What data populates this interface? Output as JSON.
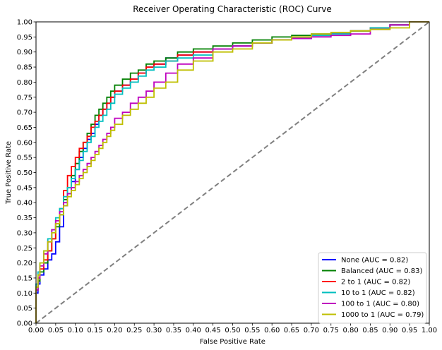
{
  "chart_data": {
    "type": "line",
    "title": "Receiver Operating Characteristic (ROC) Curve",
    "xlabel": "False Positive Rate",
    "ylabel": "True Positive Rate",
    "xlim": [
      0,
      1
    ],
    "ylim": [
      0,
      1
    ],
    "grid": false,
    "legend_position": "lower-right",
    "x_ticks": [
      "0.00",
      "0.05",
      "0.10",
      "0.15",
      "0.20",
      "0.25",
      "0.30",
      "0.35",
      "0.40",
      "0.45",
      "0.50",
      "0.55",
      "0.60",
      "0.65",
      "0.70",
      "0.75",
      "0.80",
      "0.85",
      "0.90",
      "0.95",
      "1.00"
    ],
    "y_ticks": [
      "0.00",
      "0.05",
      "0.10",
      "0.15",
      "0.20",
      "0.25",
      "0.30",
      "0.35",
      "0.40",
      "0.45",
      "0.50",
      "0.55",
      "0.60",
      "0.65",
      "0.70",
      "0.75",
      "0.80",
      "0.85",
      "0.90",
      "0.95",
      "1.00"
    ],
    "diagonal": {
      "x": [
        0,
        1
      ],
      "y": [
        0,
        1
      ],
      "color": "#808080",
      "style": "dashed"
    },
    "series": [
      {
        "name": "None (AUC = 0.82)",
        "color": "#0000ff",
        "x": [
          0,
          0.005,
          0.01,
          0.02,
          0.03,
          0.04,
          0.05,
          0.06,
          0.07,
          0.08,
          0.09,
          0.1,
          0.11,
          0.12,
          0.13,
          0.14,
          0.15,
          0.16,
          0.17,
          0.18,
          0.19,
          0.2,
          0.22,
          0.24,
          0.26,
          0.28,
          0.3,
          0.33,
          0.36,
          0.4,
          0.45,
          0.5,
          0.55,
          0.6,
          0.65,
          0.7,
          0.75,
          0.8,
          0.85,
          0.9,
          0.95,
          1.0
        ],
        "y": [
          0,
          0.1,
          0.13,
          0.16,
          0.18,
          0.21,
          0.23,
          0.27,
          0.32,
          0.39,
          0.43,
          0.47,
          0.51,
          0.55,
          0.58,
          0.61,
          0.63,
          0.66,
          0.69,
          0.71,
          0.73,
          0.75,
          0.77,
          0.79,
          0.81,
          0.83,
          0.85,
          0.86,
          0.88,
          0.89,
          0.9,
          0.91,
          0.92,
          0.93,
          0.94,
          0.945,
          0.955,
          0.96,
          0.97,
          0.98,
          0.99,
          1.0
        ]
      },
      {
        "name": "Balanced (AUC = 0.83)",
        "color": "#008000",
        "x": [
          0,
          0.005,
          0.01,
          0.02,
          0.03,
          0.04,
          0.05,
          0.06,
          0.07,
          0.08,
          0.09,
          0.1,
          0.11,
          0.12,
          0.13,
          0.14,
          0.15,
          0.16,
          0.17,
          0.18,
          0.19,
          0.2,
          0.22,
          0.24,
          0.26,
          0.28,
          0.3,
          0.33,
          0.36,
          0.4,
          0.45,
          0.5,
          0.55,
          0.6,
          0.65,
          0.7,
          0.75,
          0.8,
          0.85,
          0.9,
          0.95,
          1.0
        ],
        "y": [
          0,
          0.11,
          0.14,
          0.17,
          0.2,
          0.24,
          0.28,
          0.32,
          0.36,
          0.41,
          0.45,
          0.49,
          0.53,
          0.57,
          0.6,
          0.63,
          0.66,
          0.69,
          0.71,
          0.73,
          0.75,
          0.77,
          0.79,
          0.81,
          0.83,
          0.84,
          0.86,
          0.87,
          0.88,
          0.9,
          0.91,
          0.92,
          0.93,
          0.94,
          0.95,
          0.955,
          0.96,
          0.965,
          0.97,
          0.98,
          0.99,
          1.0
        ]
      },
      {
        "name": "2 to 1 (AUC = 0.82)",
        "color": "#ff0000",
        "x": [
          0,
          0.005,
          0.01,
          0.02,
          0.03,
          0.04,
          0.05,
          0.06,
          0.07,
          0.08,
          0.09,
          0.1,
          0.11,
          0.12,
          0.13,
          0.14,
          0.15,
          0.16,
          0.17,
          0.18,
          0.19,
          0.2,
          0.22,
          0.24,
          0.26,
          0.28,
          0.3,
          0.33,
          0.36,
          0.4,
          0.45,
          0.5,
          0.55,
          0.6,
          0.65,
          0.7,
          0.75,
          0.8,
          0.85,
          0.9,
          0.95,
          1.0
        ],
        "y": [
          0,
          0.12,
          0.15,
          0.18,
          0.21,
          0.24,
          0.28,
          0.33,
          0.38,
          0.44,
          0.49,
          0.52,
          0.55,
          0.58,
          0.6,
          0.62,
          0.65,
          0.67,
          0.69,
          0.71,
          0.73,
          0.75,
          0.77,
          0.79,
          0.81,
          0.83,
          0.85,
          0.86,
          0.87,
          0.89,
          0.9,
          0.91,
          0.92,
          0.93,
          0.94,
          0.95,
          0.955,
          0.96,
          0.97,
          0.98,
          0.99,
          1.0
        ]
      },
      {
        "name": "10 to 1 (AUC = 0.82)",
        "color": "#00bfbf",
        "x": [
          0,
          0.005,
          0.01,
          0.02,
          0.03,
          0.04,
          0.05,
          0.06,
          0.07,
          0.08,
          0.09,
          0.1,
          0.11,
          0.12,
          0.13,
          0.14,
          0.15,
          0.16,
          0.17,
          0.18,
          0.19,
          0.2,
          0.22,
          0.24,
          0.26,
          0.28,
          0.3,
          0.33,
          0.36,
          0.4,
          0.45,
          0.5,
          0.55,
          0.6,
          0.65,
          0.7,
          0.75,
          0.8,
          0.85,
          0.9,
          0.95,
          1.0
        ],
        "y": [
          0,
          0.13,
          0.17,
          0.2,
          0.24,
          0.28,
          0.31,
          0.35,
          0.38,
          0.42,
          0.45,
          0.48,
          0.51,
          0.54,
          0.57,
          0.6,
          0.62,
          0.65,
          0.67,
          0.69,
          0.71,
          0.73,
          0.76,
          0.78,
          0.8,
          0.82,
          0.84,
          0.85,
          0.87,
          0.88,
          0.89,
          0.91,
          0.92,
          0.93,
          0.94,
          0.95,
          0.955,
          0.96,
          0.97,
          0.98,
          0.99,
          1.0
        ]
      },
      {
        "name": "100 to 1 (AUC = 0.80)",
        "color": "#bf00bf",
        "x": [
          0,
          0.005,
          0.01,
          0.02,
          0.03,
          0.04,
          0.05,
          0.06,
          0.07,
          0.08,
          0.09,
          0.1,
          0.11,
          0.12,
          0.13,
          0.14,
          0.15,
          0.16,
          0.17,
          0.18,
          0.19,
          0.2,
          0.22,
          0.24,
          0.26,
          0.28,
          0.3,
          0.33,
          0.36,
          0.4,
          0.45,
          0.5,
          0.55,
          0.6,
          0.65,
          0.7,
          0.75,
          0.8,
          0.85,
          0.9,
          0.95,
          1.0
        ],
        "y": [
          0,
          0.11,
          0.15,
          0.19,
          0.23,
          0.27,
          0.31,
          0.34,
          0.37,
          0.4,
          0.43,
          0.45,
          0.47,
          0.49,
          0.51,
          0.53,
          0.55,
          0.57,
          0.59,
          0.61,
          0.63,
          0.65,
          0.68,
          0.7,
          0.73,
          0.75,
          0.77,
          0.8,
          0.83,
          0.86,
          0.88,
          0.91,
          0.92,
          0.93,
          0.94,
          0.945,
          0.95,
          0.955,
          0.96,
          0.975,
          0.99,
          1.0
        ]
      },
      {
        "name": "1000 to 1 (AUC = 0.79)",
        "color": "#bfbf00",
        "x": [
          0,
          0.005,
          0.01,
          0.02,
          0.03,
          0.04,
          0.05,
          0.06,
          0.07,
          0.08,
          0.09,
          0.1,
          0.11,
          0.12,
          0.13,
          0.14,
          0.15,
          0.16,
          0.17,
          0.18,
          0.19,
          0.2,
          0.22,
          0.24,
          0.26,
          0.28,
          0.3,
          0.33,
          0.36,
          0.4,
          0.45,
          0.5,
          0.55,
          0.6,
          0.65,
          0.7,
          0.75,
          0.8,
          0.85,
          0.9,
          0.95,
          1.0
        ],
        "y": [
          0,
          0.12,
          0.16,
          0.2,
          0.24,
          0.27,
          0.3,
          0.33,
          0.36,
          0.39,
          0.42,
          0.44,
          0.46,
          0.48,
          0.5,
          0.52,
          0.54,
          0.56,
          0.58,
          0.6,
          0.62,
          0.64,
          0.66,
          0.69,
          0.71,
          0.73,
          0.75,
          0.78,
          0.8,
          0.84,
          0.87,
          0.9,
          0.91,
          0.93,
          0.94,
          0.95,
          0.96,
          0.965,
          0.97,
          0.975,
          0.98,
          1.0
        ]
      }
    ]
  }
}
